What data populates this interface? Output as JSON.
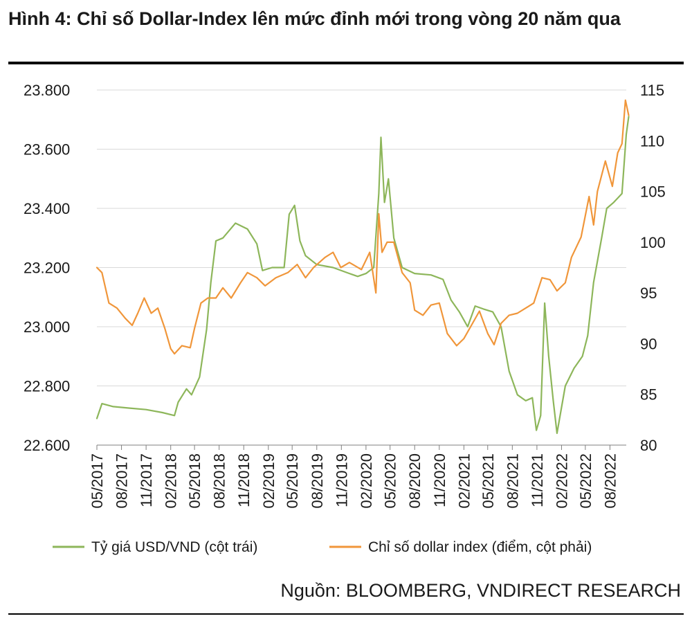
{
  "figure": {
    "title": "Hình 4: Chỉ số Dollar-Index lên mức đỉnh mới trong vòng 20 năm qua",
    "source": "Nguồn: BLOOMBERG, VNDIRECT RESEARCH"
  },
  "chart_data": {
    "type": "line",
    "title": "Hình 4: Chỉ số Dollar-Index lên mức đỉnh mới trong vòng 20 năm qua",
    "x_ticks": [
      "05/2017",
      "08/2017",
      "11/2017",
      "02/2018",
      "05/2018",
      "08/2018",
      "11/2018",
      "02/2019",
      "05/2019",
      "08/2019",
      "11/2019",
      "02/2020",
      "05/2020",
      "08/2020",
      "11/2020",
      "02/2021",
      "05/2021",
      "08/2021",
      "11/2021",
      "02/2022",
      "05/2022",
      "08/2022"
    ],
    "x_range": [
      "2017-05",
      "2022-10"
    ],
    "y_left": {
      "range": [
        22600,
        23800
      ],
      "ticks": [
        "22.600",
        "22.800",
        "23.000",
        "23.200",
        "23.400",
        "23.600",
        "23.800"
      ]
    },
    "y_right": {
      "range": [
        80,
        115
      ],
      "ticks": [
        "80",
        "85",
        "90",
        "95",
        "100",
        "105",
        "110",
        "115"
      ]
    },
    "grid": "horizontal",
    "legend_position": "bottom",
    "series": [
      {
        "name": "Tỷ giá USD/VND (cột trái)",
        "axis": "left",
        "color": "#8DB65A",
        "points": [
          [
            "2017-05-01",
            22690
          ],
          [
            "2017-05-20",
            22740
          ],
          [
            "2017-07-01",
            22730
          ],
          [
            "2017-09-01",
            22725
          ],
          [
            "2017-11-01",
            22720
          ],
          [
            "2018-01-01",
            22710
          ],
          [
            "2018-02-15",
            22700
          ],
          [
            "2018-03-01",
            22745
          ],
          [
            "2018-04-01",
            22790
          ],
          [
            "2018-04-20",
            22770
          ],
          [
            "2018-05-20",
            22830
          ],
          [
            "2018-06-15",
            22990
          ],
          [
            "2018-07-01",
            23150
          ],
          [
            "2018-07-20",
            23290
          ],
          [
            "2018-08-15",
            23300
          ],
          [
            "2018-10-01",
            23350
          ],
          [
            "2018-11-15",
            23330
          ],
          [
            "2018-12-20",
            23280
          ],
          [
            "2019-01-10",
            23190
          ],
          [
            "2019-02-15",
            23200
          ],
          [
            "2019-04-01",
            23200
          ],
          [
            "2019-04-20",
            23380
          ],
          [
            "2019-05-10",
            23410
          ],
          [
            "2019-05-30",
            23290
          ],
          [
            "2019-06-20",
            23240
          ],
          [
            "2019-08-01",
            23210
          ],
          [
            "2019-10-01",
            23200
          ],
          [
            "2019-12-01",
            23180
          ],
          [
            "2020-01-01",
            23170
          ],
          [
            "2020-02-01",
            23180
          ],
          [
            "2020-03-01",
            23200
          ],
          [
            "2020-03-20",
            23450
          ],
          [
            "2020-03-28",
            23640
          ],
          [
            "2020-04-10",
            23420
          ],
          [
            "2020-04-25",
            23500
          ],
          [
            "2020-05-15",
            23300
          ],
          [
            "2020-06-15",
            23200
          ],
          [
            "2020-08-01",
            23180
          ],
          [
            "2020-10-01",
            23175
          ],
          [
            "2020-11-15",
            23160
          ],
          [
            "2020-12-15",
            23090
          ],
          [
            "2021-01-15",
            23050
          ],
          [
            "2021-02-15",
            23000
          ],
          [
            "2021-03-15",
            23070
          ],
          [
            "2021-04-15",
            23060
          ],
          [
            "2021-05-20",
            23050
          ],
          [
            "2021-06-20",
            23000
          ],
          [
            "2021-07-20",
            22850
          ],
          [
            "2021-08-20",
            22770
          ],
          [
            "2021-09-20",
            22750
          ],
          [
            "2021-10-15",
            22760
          ],
          [
            "2021-10-30",
            22650
          ],
          [
            "2021-11-15",
            22700
          ],
          [
            "2021-11-30",
            23080
          ],
          [
            "2021-12-15",
            22900
          ],
          [
            "2022-01-01",
            22750
          ],
          [
            "2022-01-15",
            22640
          ],
          [
            "2022-02-15",
            22800
          ],
          [
            "2022-03-20",
            22860
          ],
          [
            "2022-04-20",
            22900
          ],
          [
            "2022-05-10",
            22970
          ],
          [
            "2022-06-01",
            23150
          ],
          [
            "2022-07-01",
            23300
          ],
          [
            "2022-07-20",
            23400
          ],
          [
            "2022-08-15",
            23420
          ],
          [
            "2022-09-15",
            23450
          ],
          [
            "2022-10-01",
            23650
          ],
          [
            "2022-10-10",
            23710
          ]
        ]
      },
      {
        "name": "Chỉ số dollar index (điểm, cột phải)",
        "axis": "right",
        "color": "#F0963A",
        "points": [
          [
            "2017-05-01",
            97.5
          ],
          [
            "2017-05-20",
            97.0
          ],
          [
            "2017-06-15",
            94.0
          ],
          [
            "2017-07-15",
            93.5
          ],
          [
            "2017-08-15",
            92.5
          ],
          [
            "2017-09-10",
            91.8
          ],
          [
            "2017-10-01",
            93.0
          ],
          [
            "2017-10-25",
            94.5
          ],
          [
            "2017-11-20",
            93.0
          ],
          [
            "2017-12-15",
            93.5
          ],
          [
            "2018-01-10",
            91.5
          ],
          [
            "2018-02-01",
            89.5
          ],
          [
            "2018-02-15",
            89.0
          ],
          [
            "2018-03-15",
            89.8
          ],
          [
            "2018-04-15",
            89.6
          ],
          [
            "2018-05-01",
            91.5
          ],
          [
            "2018-05-25",
            94.0
          ],
          [
            "2018-06-20",
            94.5
          ],
          [
            "2018-07-20",
            94.5
          ],
          [
            "2018-08-15",
            95.5
          ],
          [
            "2018-09-15",
            94.5
          ],
          [
            "2018-10-20",
            96.0
          ],
          [
            "2018-11-15",
            97.0
          ],
          [
            "2018-12-20",
            96.5
          ],
          [
            "2019-01-20",
            95.7
          ],
          [
            "2019-03-01",
            96.5
          ],
          [
            "2019-04-15",
            97.0
          ],
          [
            "2019-05-20",
            97.8
          ],
          [
            "2019-06-20",
            96.5
          ],
          [
            "2019-07-20",
            97.5
          ],
          [
            "2019-09-01",
            98.5
          ],
          [
            "2019-10-01",
            99.0
          ],
          [
            "2019-10-30",
            97.5
          ],
          [
            "2019-12-01",
            98.0
          ],
          [
            "2020-01-15",
            97.3
          ],
          [
            "2020-02-15",
            99.0
          ],
          [
            "2020-03-09",
            95.0
          ],
          [
            "2020-03-20",
            102.8
          ],
          [
            "2020-04-01",
            99.0
          ],
          [
            "2020-04-20",
            100.0
          ],
          [
            "2020-05-15",
            100.0
          ],
          [
            "2020-06-15",
            97.0
          ],
          [
            "2020-07-15",
            96.0
          ],
          [
            "2020-08-01",
            93.3
          ],
          [
            "2020-09-01",
            92.8
          ],
          [
            "2020-10-01",
            93.8
          ],
          [
            "2020-11-01",
            94.0
          ],
          [
            "2020-12-01",
            91.0
          ],
          [
            "2021-01-05",
            89.8
          ],
          [
            "2021-02-01",
            90.5
          ],
          [
            "2021-03-01",
            91.8
          ],
          [
            "2021-03-31",
            93.2
          ],
          [
            "2021-05-01",
            91.0
          ],
          [
            "2021-05-25",
            89.9
          ],
          [
            "2021-06-20",
            92.0
          ],
          [
            "2021-07-20",
            92.8
          ],
          [
            "2021-08-20",
            93.0
          ],
          [
            "2021-09-20",
            93.5
          ],
          [
            "2021-10-20",
            94.0
          ],
          [
            "2021-11-20",
            96.5
          ],
          [
            "2021-12-20",
            96.3
          ],
          [
            "2022-01-15",
            95.2
          ],
          [
            "2022-02-15",
            96.0
          ],
          [
            "2022-03-10",
            98.5
          ],
          [
            "2022-04-15",
            100.5
          ],
          [
            "2022-05-15",
            104.5
          ],
          [
            "2022-06-01",
            101.7
          ],
          [
            "2022-06-15",
            105.0
          ],
          [
            "2022-07-15",
            108.0
          ],
          [
            "2022-08-10",
            105.5
          ],
          [
            "2022-08-30",
            108.8
          ],
          [
            "2022-09-15",
            109.7
          ],
          [
            "2022-09-28",
            114.0
          ],
          [
            "2022-10-10",
            112.5
          ]
        ]
      }
    ]
  }
}
